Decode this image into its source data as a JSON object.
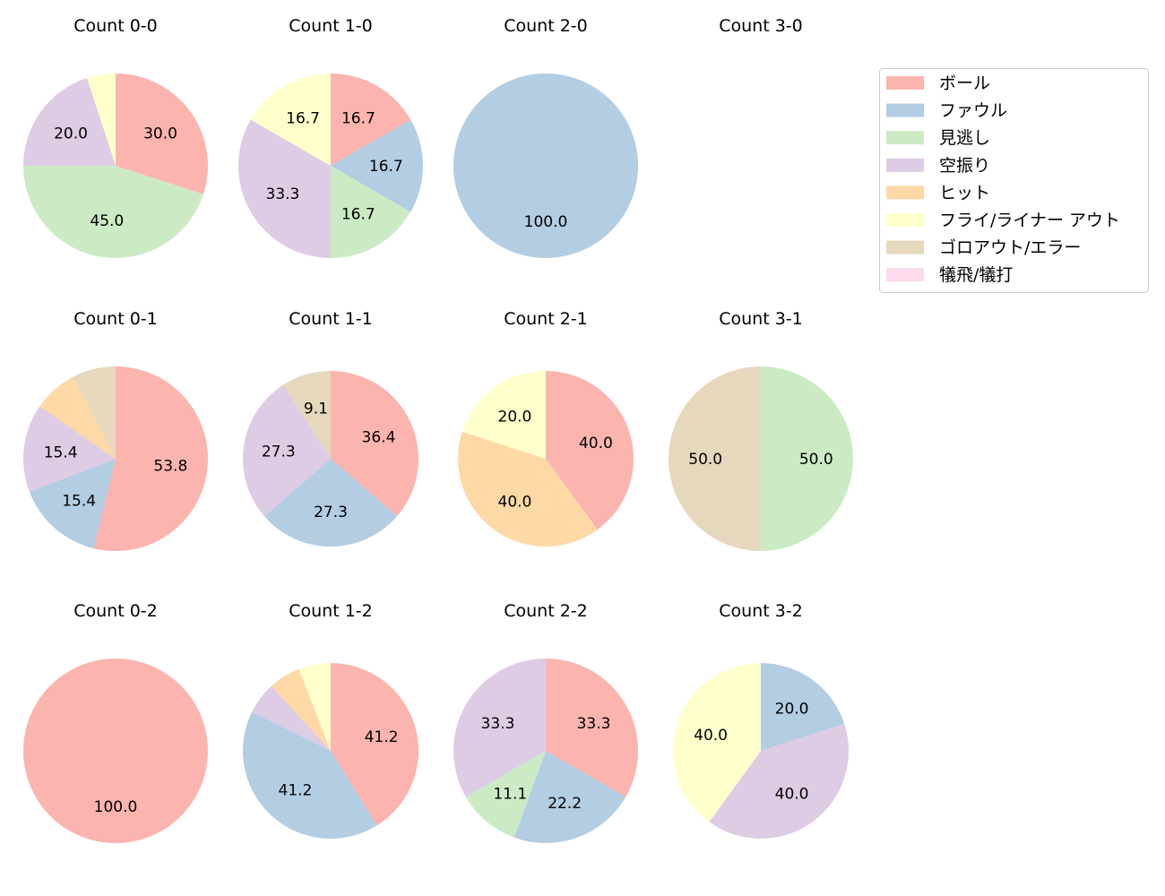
{
  "chart_data": {
    "type": "pie",
    "legend": {
      "placement": "top-right",
      "entries": [
        {
          "label": "ボール",
          "color": "#fbb4ae"
        },
        {
          "label": "ファウル",
          "color": "#b3cde3"
        },
        {
          "label": "見逃し",
          "color": "#ccebc5"
        },
        {
          "label": "空振り",
          "color": "#decbe4"
        },
        {
          "label": "ヒット",
          "color": "#fed9a6"
        },
        {
          "label": "フライ/ライナー アウト",
          "color": "#ffffcc"
        },
        {
          "label": "ゴロアウト/エラー",
          "color": "#e5d8bd"
        },
        {
          "label": "犠飛/犠打",
          "color": "#fddaec"
        }
      ]
    },
    "charts": [
      {
        "title": "Count 0-0",
        "values": [
          30,
          0,
          45,
          20,
          0,
          5,
          0,
          0
        ],
        "labels": [
          "30.0",
          null,
          "45.0",
          "20.0",
          null,
          null,
          null,
          null
        ]
      },
      {
        "title": "Count 1-0",
        "values": [
          16.7,
          16.7,
          16.7,
          33.3,
          0,
          16.7,
          0,
          0
        ],
        "labels": [
          "16.7",
          "16.7",
          "16.7",
          "33.3",
          null,
          "16.7",
          null,
          null
        ]
      },
      {
        "title": "Count 2-0",
        "values": [
          0,
          100,
          0,
          0,
          0,
          0,
          0,
          0
        ],
        "labels": [
          null,
          "100.0",
          null,
          null,
          null,
          null,
          null,
          null
        ]
      },
      {
        "title": "Count 3-0",
        "values": [],
        "labels": []
      },
      {
        "title": "Count 0-1",
        "values": [
          53.8,
          15.4,
          0,
          15.4,
          7.7,
          0,
          7.7,
          0
        ],
        "labels": [
          "53.8",
          "15.4",
          null,
          "15.4",
          null,
          null,
          null,
          null
        ]
      },
      {
        "title": "Count 1-1",
        "values": [
          36.4,
          27.3,
          0,
          27.3,
          0,
          0,
          9.1,
          0
        ],
        "labels": [
          "36.4",
          "27.3",
          null,
          "27.3",
          null,
          null,
          "9.1",
          null
        ]
      },
      {
        "title": "Count 2-1",
        "values": [
          40,
          0,
          0,
          0,
          40,
          20,
          0,
          0
        ],
        "labels": [
          "40.0",
          null,
          null,
          null,
          "40.0",
          "20.0",
          null,
          null
        ]
      },
      {
        "title": "Count 3-1",
        "values": [
          0,
          0,
          50,
          0,
          0,
          0,
          50,
          0
        ],
        "labels": [
          null,
          null,
          "50.0",
          null,
          null,
          null,
          "50.0",
          null
        ]
      },
      {
        "title": "Count 0-2",
        "values": [
          100,
          0,
          0,
          0,
          0,
          0,
          0,
          0
        ],
        "labels": [
          "100.0",
          null,
          null,
          null,
          null,
          null,
          null,
          null
        ]
      },
      {
        "title": "Count 1-2",
        "values": [
          41.2,
          41.2,
          0,
          5.9,
          5.9,
          5.9,
          0,
          0
        ],
        "labels": [
          "41.2",
          "41.2",
          null,
          null,
          null,
          null,
          null,
          null
        ]
      },
      {
        "title": "Count 2-2",
        "values": [
          33.3,
          22.2,
          11.1,
          33.3,
          0,
          0,
          0,
          0
        ],
        "labels": [
          "33.3",
          "22.2",
          "11.1",
          "33.3",
          null,
          null,
          null,
          null
        ]
      },
      {
        "title": "Count 3-2",
        "values": [
          0,
          20,
          0,
          40,
          0,
          40,
          0,
          0
        ],
        "labels": [
          null,
          "20.0",
          null,
          "40.0",
          null,
          "40.0",
          null,
          null
        ]
      }
    ]
  }
}
